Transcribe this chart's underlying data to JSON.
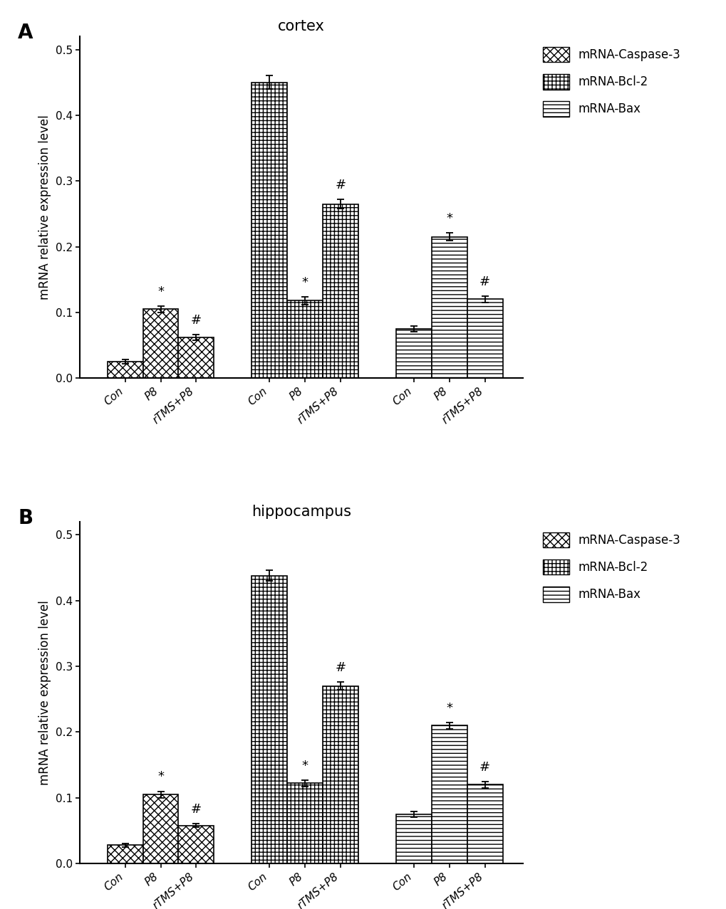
{
  "panel_A": {
    "title": "cortex",
    "groups": [
      "Caspase-3",
      "Bcl-2",
      "Bax"
    ],
    "conditions": [
      "Con",
      "P8",
      "rTMS+P8"
    ],
    "values": [
      [
        0.025,
        0.105,
        0.062
      ],
      [
        0.45,
        0.118,
        0.265
      ],
      [
        0.075,
        0.215,
        0.12
      ]
    ],
    "errors": [
      [
        0.003,
        0.005,
        0.004
      ],
      [
        0.01,
        0.006,
        0.007
      ],
      [
        0.004,
        0.006,
        0.005
      ]
    ],
    "annotations": [
      [
        "",
        "*",
        "#"
      ],
      [
        "",
        "*",
        "#"
      ],
      [
        "",
        "*",
        "#"
      ]
    ]
  },
  "panel_B": {
    "title": "hippocampus",
    "groups": [
      "Caspase-3",
      "Bcl-2",
      "Bax"
    ],
    "conditions": [
      "Con",
      "P8",
      "rTMS+P8"
    ],
    "values": [
      [
        0.028,
        0.105,
        0.058
      ],
      [
        0.438,
        0.122,
        0.27
      ],
      [
        0.075,
        0.21,
        0.12
      ]
    ],
    "errors": [
      [
        0.003,
        0.005,
        0.003
      ],
      [
        0.008,
        0.005,
        0.006
      ],
      [
        0.004,
        0.005,
        0.005
      ]
    ],
    "annotations": [
      [
        "",
        "*",
        "#"
      ],
      [
        "",
        "*",
        "#"
      ],
      [
        "",
        "*",
        "#"
      ]
    ]
  },
  "legend_labels": [
    "mRNA-Caspase-3",
    "mRNA-Bcl-2",
    "mRNA-Bax"
  ],
  "ylabel": "mRNA relative expression level",
  "ylim": [
    0,
    0.52
  ],
  "yticks": [
    0.0,
    0.1,
    0.2,
    0.3,
    0.4,
    0.5
  ],
  "background_color": "#ffffff",
  "bar_edge_color": "#000000",
  "bar_linewidth": 1.2,
  "panel_labels": [
    "A",
    "B"
  ],
  "title_fontsize": 15,
  "label_fontsize": 12,
  "tick_fontsize": 11,
  "legend_fontsize": 12,
  "annot_fontsize": 13
}
